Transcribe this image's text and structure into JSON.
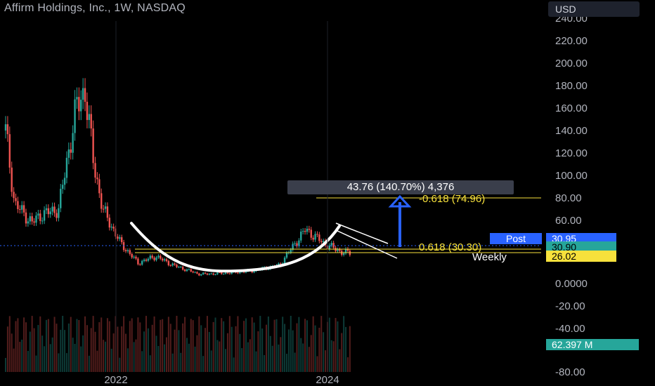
{
  "header": {
    "title": "Affirm Holdings, Inc., 1W, NASDAQ",
    "currency": "USD"
  },
  "colors": {
    "up": "#26a69a",
    "down": "#ef5350",
    "fib": "#f7e13c",
    "arrow": "#2962ff",
    "cup": "#ffffff"
  },
  "chart_data": {
    "type": "candlestick",
    "title": "Affirm Holdings, Inc., 1W, NASDAQ",
    "xlabel": "",
    "ylabel": "",
    "x_ticks": [
      "2022",
      "2024"
    ],
    "y_ticks": [
      "240.00",
      "220.00",
      "200.00",
      "180.00",
      "160.00",
      "140.00",
      "120.00",
      "100.00",
      "80.00",
      "60.00",
      "40.00",
      "0.0000",
      "-20.00",
      "-40.00",
      "-80.00"
    ],
    "ylim": [
      -80,
      240
    ],
    "grid": false,
    "price_series": [
      {
        "date": "2021-02",
        "close": 140
      },
      {
        "date": "2021-03",
        "close": 75
      },
      {
        "date": "2021-05",
        "close": 58
      },
      {
        "date": "2021-06",
        "close": 65
      },
      {
        "date": "2021-08",
        "close": 70
      },
      {
        "date": "2021-09",
        "close": 115
      },
      {
        "date": "2021-10",
        "close": 160
      },
      {
        "date": "2021-11",
        "close": 176
      },
      {
        "date": "2021-12",
        "close": 110
      },
      {
        "date": "2022-01",
        "close": 70
      },
      {
        "date": "2022-03",
        "close": 40
      },
      {
        "date": "2022-05",
        "close": 22
      },
      {
        "date": "2022-07",
        "close": 28
      },
      {
        "date": "2022-09",
        "close": 20
      },
      {
        "date": "2022-12",
        "close": 12
      },
      {
        "date": "2023-03",
        "close": 13
      },
      {
        "date": "2023-06",
        "close": 15
      },
      {
        "date": "2023-09",
        "close": 20
      },
      {
        "date": "2023-12",
        "close": 52
      },
      {
        "date": "2024-02",
        "close": 40
      },
      {
        "date": "2024-04",
        "close": 32
      },
      {
        "date": "2024-05",
        "close": 30.95
      }
    ],
    "volume_note": "weekly volume bars",
    "annotations": {
      "measure_label": "43.76 (140.70%) 4,376",
      "fib_upper": "-0.618 (74.96)",
      "fib_lower": "0.618 (30.30)",
      "interval_label": "Weekly",
      "post_label": "Post",
      "post_value": "30.95",
      "last_value": "30.90",
      "fib_badge": "26.02",
      "volume_badge": "62.397 M"
    }
  }
}
